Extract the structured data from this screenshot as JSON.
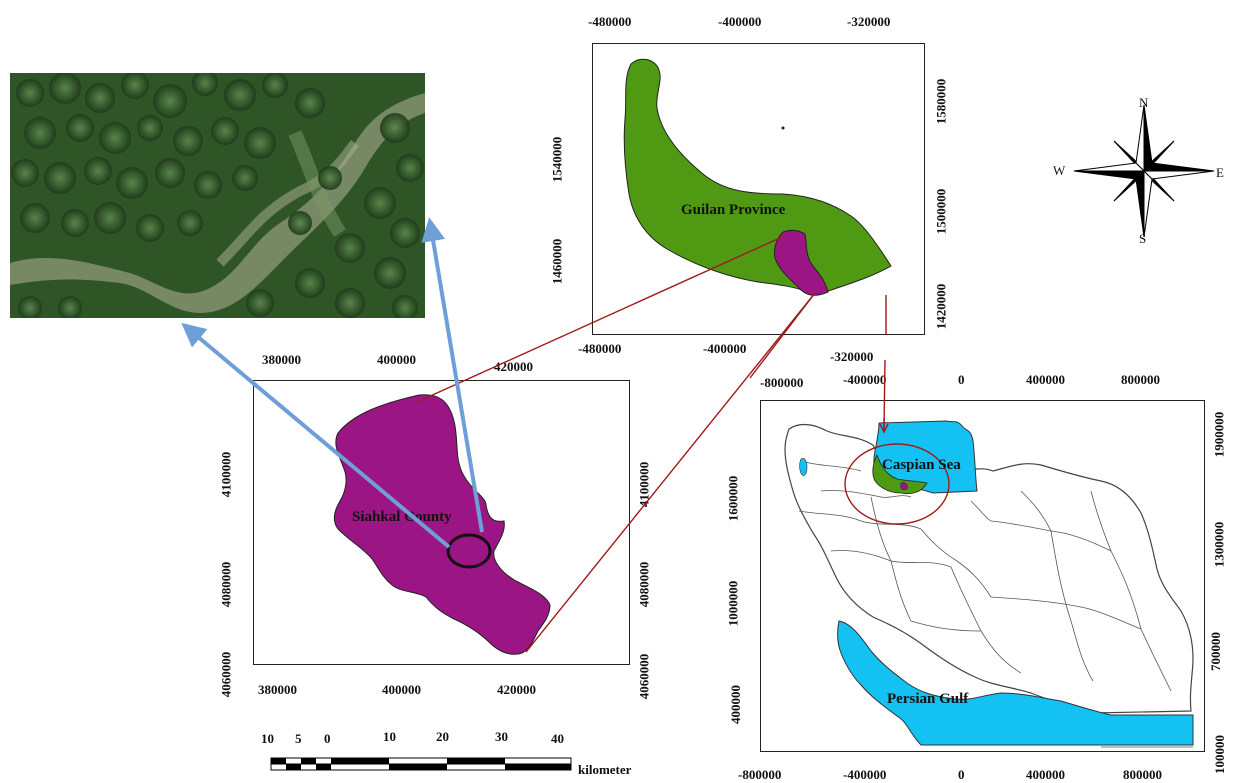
{
  "colors": {
    "province_green": "#4f9a12",
    "county_purple": "#9b1585",
    "water_blue": "#13c2f2",
    "connector_red": "#a11a1a",
    "arrow_blue": "#6e9fd6",
    "satellite_green": "#2e5a23"
  },
  "satellite": {
    "icon": "satellite-photo-forest"
  },
  "guilan_map": {
    "label": "Guilan Province",
    "x_ticks_top": [
      "-480000",
      "-400000",
      "-320000"
    ],
    "x_ticks_bottom": [
      "-480000",
      "-400000",
      "-320000"
    ],
    "y_ticks_left": [
      "1540000",
      "1460000"
    ],
    "y_ticks_right": [
      "1580000",
      "1500000",
      "1420000"
    ]
  },
  "siahkal_map": {
    "label": "Siahkal County",
    "x_ticks_top": [
      "380000",
      "400000",
      "420000"
    ],
    "x_ticks_bottom": [
      "380000",
      "400000",
      "420000"
    ],
    "y_ticks_left": [
      "4100000",
      "4080000",
      "4060000"
    ],
    "y_ticks_right": [
      "4100000",
      "4080000",
      "4060000"
    ]
  },
  "iran_map": {
    "label_caspian": "Caspian Sea",
    "label_gulf": "Persian Gulf",
    "x_ticks_top": [
      "-800000",
      "-400000",
      "0",
      "400000",
      "800000"
    ],
    "x_ticks_bottom": [
      "-800000",
      "-400000",
      "0",
      "400000",
      "800000"
    ],
    "y_ticks_left": [
      "1600000",
      "1000000",
      "400000"
    ],
    "y_ticks_right": [
      "1900000",
      "1300000",
      "700000",
      "100000"
    ]
  },
  "compass": {
    "north": "N",
    "south": "S",
    "east": "E",
    "west": "W",
    "icon": "compass-rose-icon"
  },
  "scale_bar": {
    "labels": [
      "10",
      "5",
      "0",
      "10",
      "20",
      "30",
      "40"
    ],
    "unit": "kilometer"
  }
}
